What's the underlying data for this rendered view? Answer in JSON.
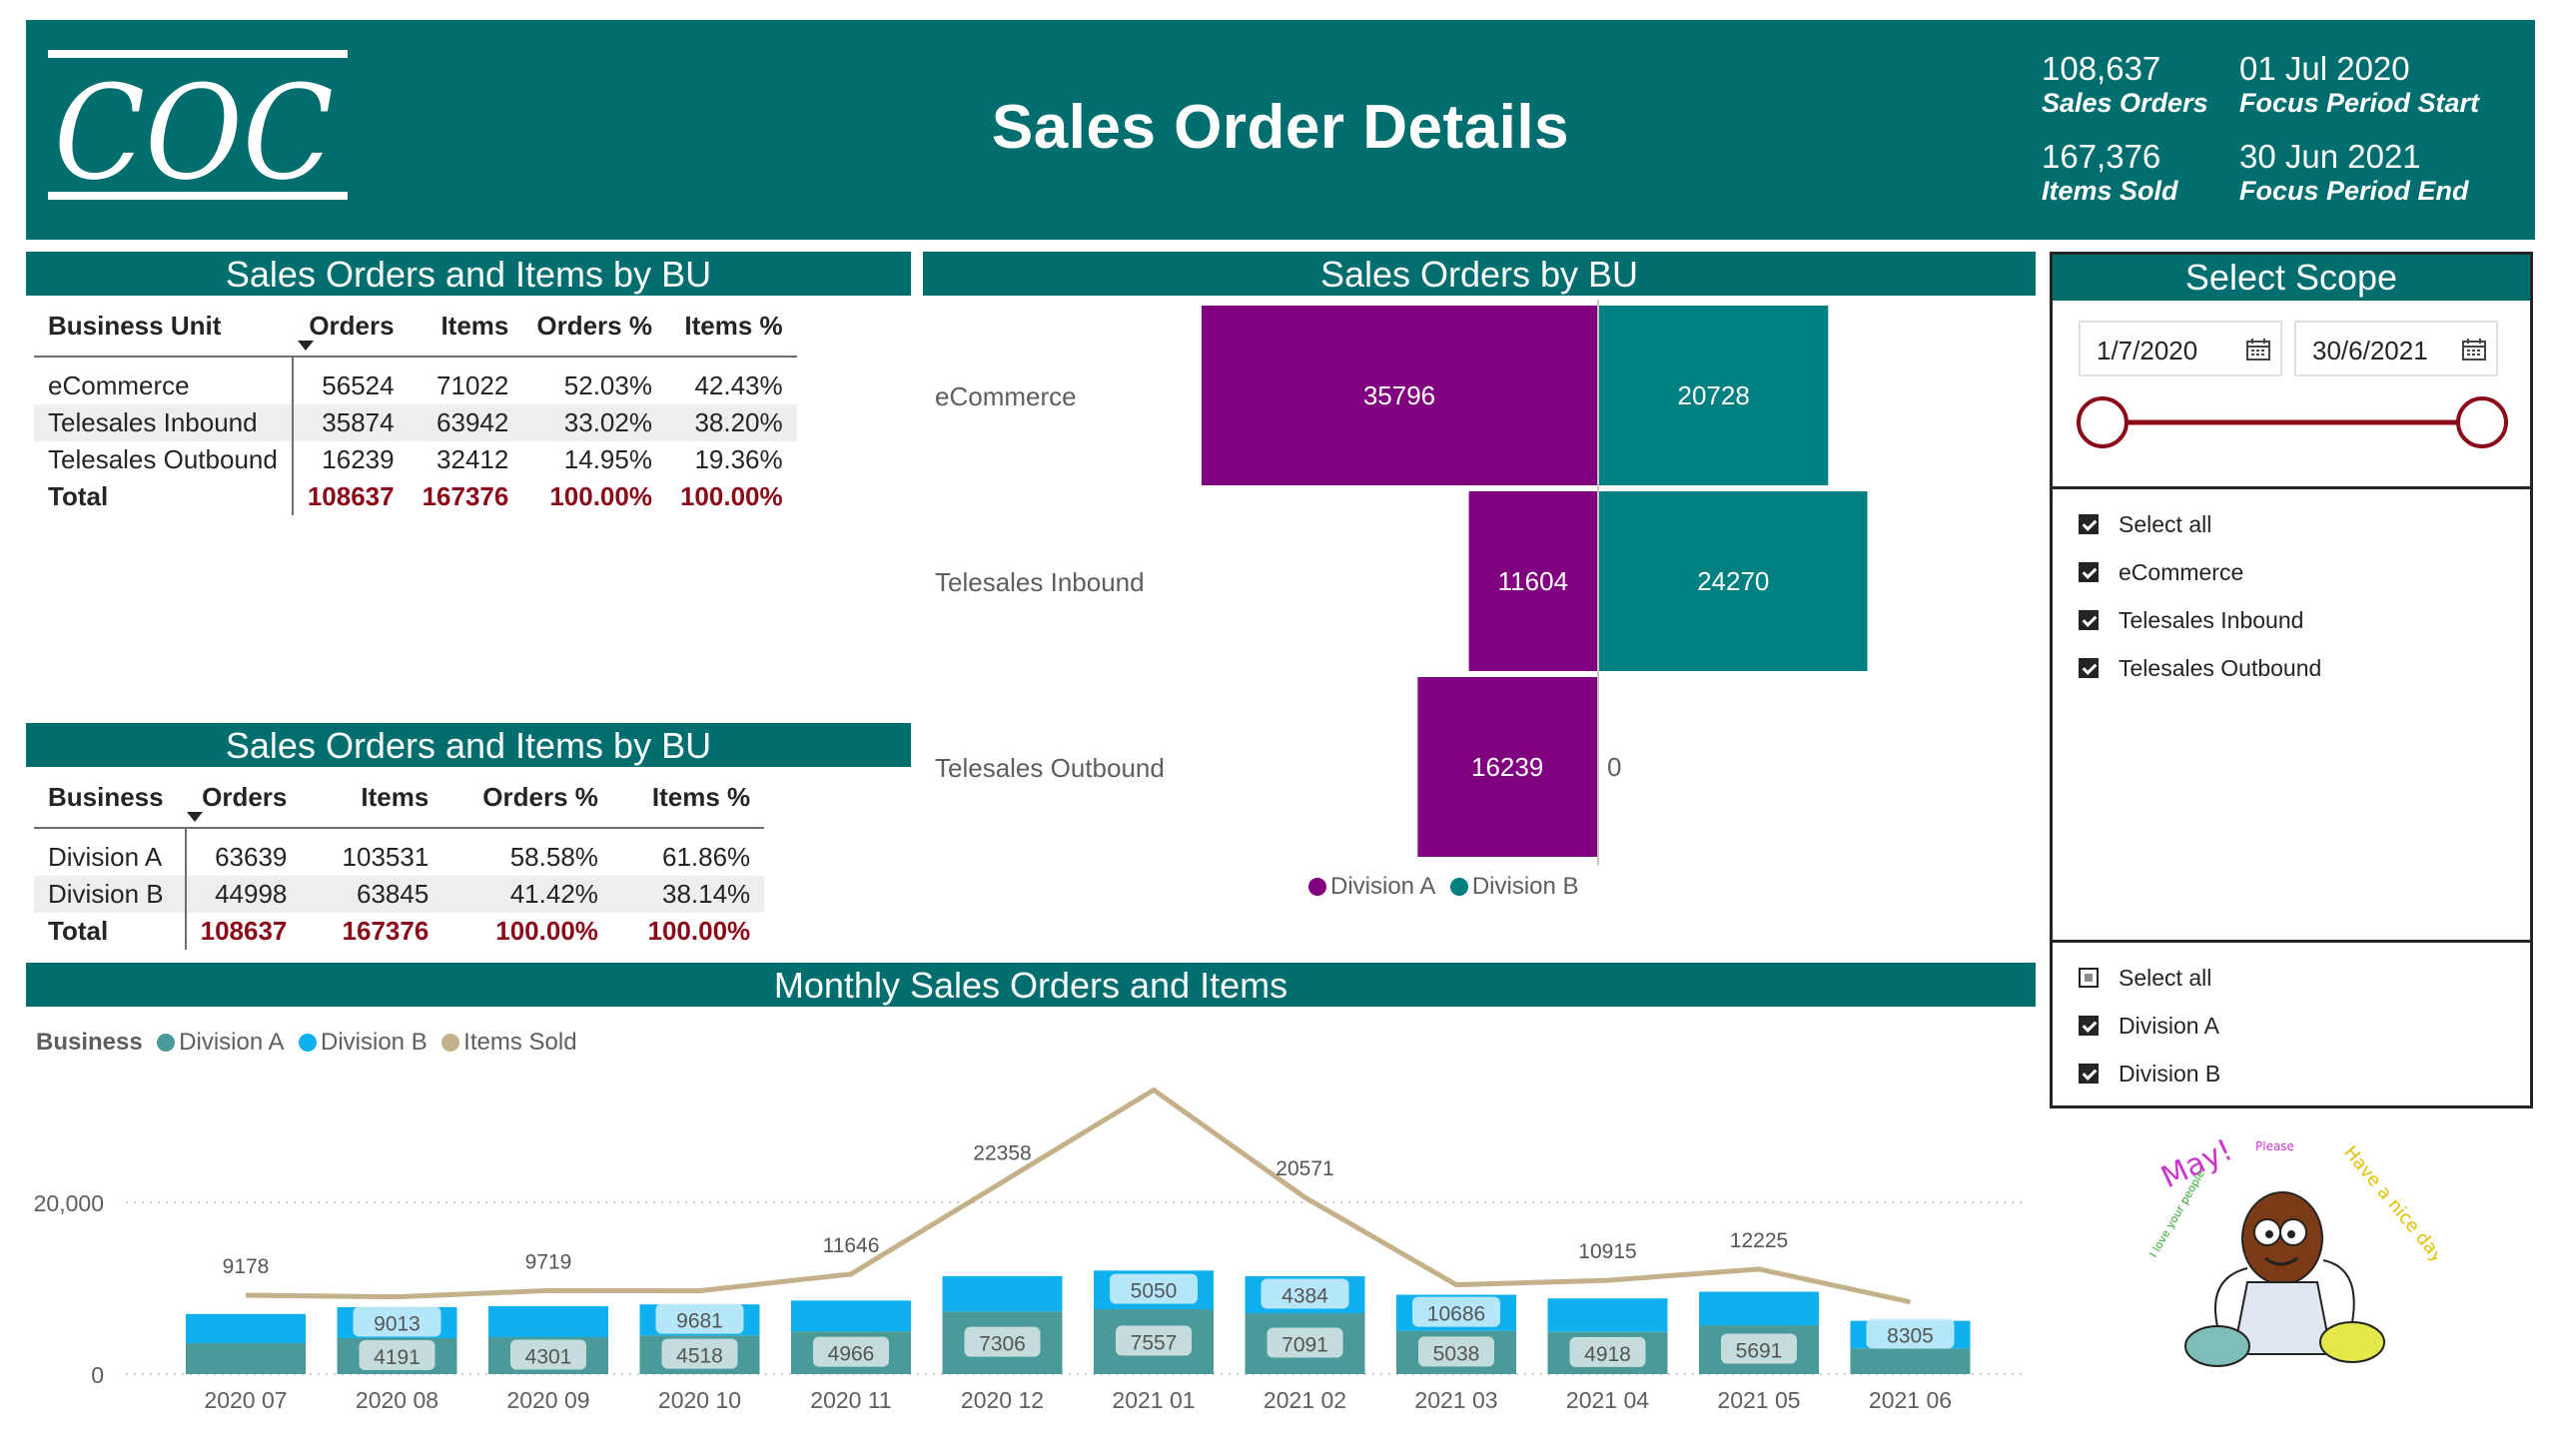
{
  "header": {
    "logo_text": "COC",
    "title": "Sales Order Details",
    "kpis": [
      {
        "value": "108,637",
        "label": "Sales Orders"
      },
      {
        "value": "167,376",
        "label": "Items Sold"
      }
    ],
    "period": [
      {
        "value": "01 Jul 2020",
        "label": "Focus Period Start"
      },
      {
        "value": "30 Jun 2021",
        "label": "Focus Period End"
      }
    ]
  },
  "table_bu": {
    "title": "Sales Orders and Items by BU",
    "columns": [
      "Business Unit",
      "Orders",
      "Items",
      "Orders %",
      "Items %"
    ],
    "rows": [
      [
        "eCommerce",
        "56524",
        "71022",
        "52.03%",
        "42.43%"
      ],
      [
        "Telesales Inbound",
        "35874",
        "63942",
        "33.02%",
        "38.20%"
      ],
      [
        "Telesales Outbound",
        "16239",
        "32412",
        "14.95%",
        "19.36%"
      ]
    ],
    "total": [
      "Total",
      "108637",
      "167376",
      "100.00%",
      "100.00%"
    ]
  },
  "table_div": {
    "title": "Sales Orders and Items by BU",
    "columns": [
      "Business",
      "Orders",
      "Items",
      "Orders %",
      "Items %"
    ],
    "rows": [
      [
        "Division A",
        "63639",
        "103531",
        "58.58%",
        "61.86%"
      ],
      [
        "Division B",
        "44998",
        "63845",
        "41.42%",
        "38.14%"
      ]
    ],
    "total": [
      "Total",
      "108637",
      "167376",
      "100.00%",
      "100.00%"
    ]
  },
  "bu_chart": {
    "title": "Sales Orders by BU",
    "legend": [
      {
        "name": "Division A",
        "color": "#800080"
      },
      {
        "name": "Division B",
        "color": "#008080"
      }
    ]
  },
  "scope": {
    "title": "Select Scope",
    "date_start": "1/7/2020",
    "date_end": "30/6/2021",
    "calendar_icon": "calendar-icon",
    "bu_filter": [
      {
        "label": "Select all",
        "state": "checked"
      },
      {
        "label": "eCommerce",
        "state": "checked"
      },
      {
        "label": "Telesales Inbound",
        "state": "checked"
      },
      {
        "label": "Telesales Outbound",
        "state": "checked"
      }
    ],
    "division_filter": [
      {
        "label": "Select all",
        "state": "partial"
      },
      {
        "label": "Division A",
        "state": "checked"
      },
      {
        "label": "Division B",
        "state": "checked"
      }
    ]
  },
  "monthly": {
    "title": "Monthly Sales Orders and Items",
    "legend_title": "Business",
    "legend": [
      {
        "name": "Division A",
        "color": "#4a9a9a"
      },
      {
        "name": "Division B",
        "color": "#0fb0f0"
      },
      {
        "name": "Items Sold",
        "color": "#c4b18a"
      }
    ]
  },
  "cartoon": {
    "texts": [
      "May!",
      "Please",
      "Have a nice day",
      "I love your people"
    ]
  },
  "chart_data": [
    {
      "type": "bar",
      "orientation": "horizontal",
      "title": "Sales Orders by BU",
      "categories": [
        "eCommerce",
        "Telesales Inbound",
        "Telesales Outbound"
      ],
      "series": [
        {
          "name": "Division A",
          "values": [
            35796,
            11604,
            16239
          ]
        },
        {
          "name": "Division B",
          "values": [
            20728,
            24270,
            0
          ]
        }
      ],
      "legend": "bottom"
    },
    {
      "type": "bar",
      "title": "Monthly Sales Orders and Items",
      "stacked": true,
      "categories": [
        "2020 07",
        "2020 08",
        "2020 09",
        "2020 10",
        "2020 11",
        "2020 12",
        "2021 01",
        "2021 02",
        "2021 03",
        "2021 04",
        "2021 05",
        "2021 06"
      ],
      "series": [
        {
          "name": "Division A",
          "values": [
            null,
            4191,
            4301,
            4518,
            4966,
            7306,
            7557,
            7091,
            5038,
            4918,
            5691,
            null
          ]
        },
        {
          "name": "Division B",
          "values": [
            null,
            9013,
            null,
            9681,
            null,
            null,
            5050,
            4384,
            10686,
            null,
            null,
            8305
          ]
        },
        {
          "name": "Items Sold",
          "type": "line",
          "values": [
            9178,
            null,
            9719,
            null,
            11646,
            22358,
            33079,
            20571,
            null,
            10915,
            12225,
            null
          ]
        }
      ],
      "y_ticks": [
        "0",
        "20,000"
      ],
      "ylim": [
        0,
        34000
      ],
      "grid": true,
      "legend": "top-left"
    }
  ]
}
